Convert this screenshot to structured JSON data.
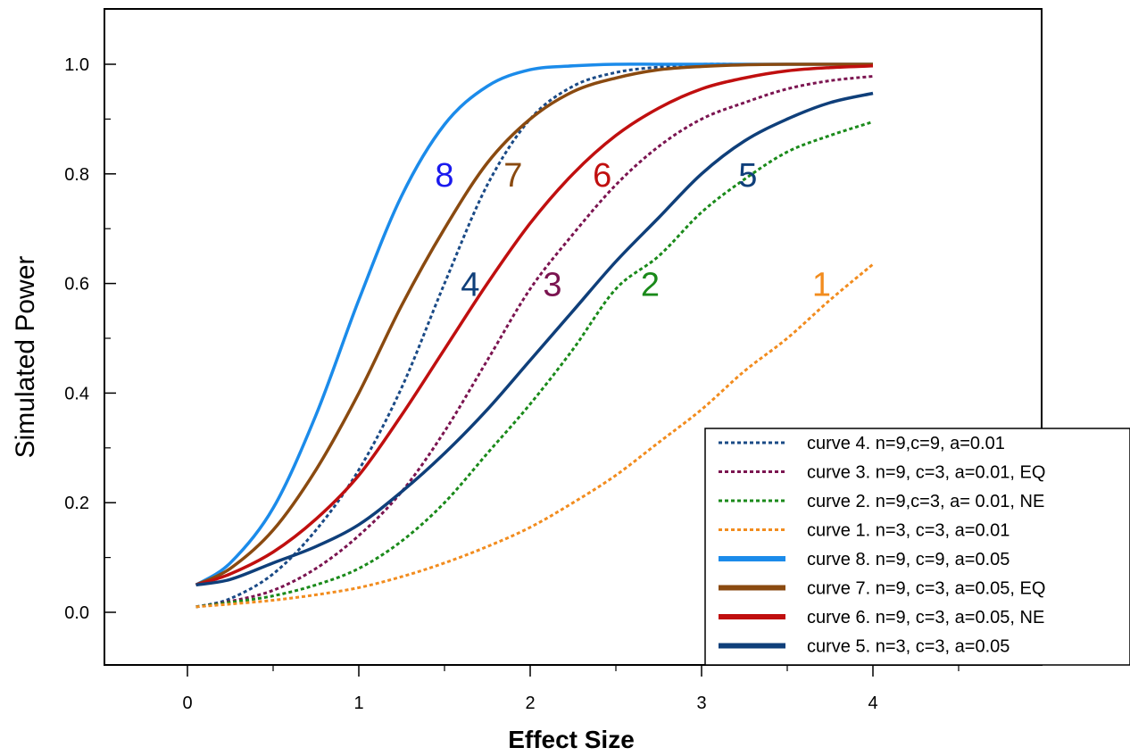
{
  "chart_data": {
    "type": "line",
    "xlabel": "Effect Size",
    "ylabel": "Simulated Power",
    "xlim": [
      -0.5,
      5.0
    ],
    "ylim": [
      -0.1,
      1.1
    ],
    "x_ticks": [
      "0",
      "1",
      "2",
      "3",
      "4"
    ],
    "y_ticks": [
      "0.0",
      "0.2",
      "0.4",
      "0.6",
      "0.8",
      "1.0"
    ],
    "grid": false,
    "legend_position": "bottom-right",
    "series": [
      {
        "name": "curve 4. n=9,c=9, a=0.01",
        "label": "4",
        "color": "#1a4a86",
        "style": "dotted",
        "x": [
          0.05,
          0.25,
          0.5,
          0.75,
          1.0,
          1.25,
          1.5,
          1.75,
          2.0,
          2.25,
          2.5,
          2.75,
          3.0,
          3.25,
          3.5,
          3.75,
          4.0
        ],
        "y": [
          0.01,
          0.025,
          0.07,
          0.15,
          0.26,
          0.41,
          0.6,
          0.78,
          0.9,
          0.96,
          0.985,
          0.995,
          1.0,
          1.0,
          1.0,
          1.0,
          1.0
        ]
      },
      {
        "name": "curve 3. n=9, c=3, a=0.01, EQ",
        "label": "3",
        "color": "#7b1450",
        "style": "dotted",
        "x": [
          0.05,
          0.25,
          0.5,
          0.75,
          1.0,
          1.25,
          1.5,
          1.75,
          2.0,
          2.25,
          2.5,
          2.75,
          3.0,
          3.25,
          3.5,
          3.75,
          4.0
        ],
        "y": [
          0.01,
          0.02,
          0.04,
          0.08,
          0.14,
          0.22,
          0.33,
          0.46,
          0.59,
          0.69,
          0.78,
          0.85,
          0.9,
          0.93,
          0.955,
          0.97,
          0.978
        ]
      },
      {
        "name": "curve 2. n=9,c=3, a= 0.01, NE",
        "label": "2",
        "color": "#1a8a1a",
        "style": "dotted",
        "x": [
          0.05,
          0.25,
          0.5,
          0.75,
          1.0,
          1.25,
          1.5,
          1.75,
          2.0,
          2.25,
          2.5,
          2.75,
          3.0,
          3.25,
          3.5,
          3.75,
          4.0
        ],
        "y": [
          0.01,
          0.018,
          0.03,
          0.05,
          0.08,
          0.13,
          0.2,
          0.29,
          0.38,
          0.48,
          0.59,
          0.65,
          0.73,
          0.79,
          0.84,
          0.87,
          0.895
        ]
      },
      {
        "name": "curve 1. n=3, c=3, a=0.01",
        "label": "1",
        "color": "#f28c1e",
        "style": "dotted",
        "x": [
          0.05,
          0.25,
          0.5,
          0.75,
          1.0,
          1.25,
          1.5,
          1.75,
          2.0,
          2.25,
          2.5,
          2.75,
          3.0,
          3.25,
          3.5,
          3.75,
          4.0
        ],
        "y": [
          0.01,
          0.015,
          0.022,
          0.032,
          0.045,
          0.065,
          0.09,
          0.12,
          0.155,
          0.2,
          0.25,
          0.31,
          0.37,
          0.44,
          0.5,
          0.57,
          0.635
        ]
      },
      {
        "name": "curve 8. n=9, c=9, a=0.05",
        "label": "8",
        "color": "#1b8bea",
        "style": "solid",
        "x": [
          0.05,
          0.25,
          0.5,
          0.75,
          1.0,
          1.25,
          1.5,
          1.75,
          2.0,
          2.25,
          2.5,
          2.75,
          3.0,
          3.25,
          3.5,
          3.75,
          4.0
        ],
        "y": [
          0.05,
          0.09,
          0.19,
          0.36,
          0.57,
          0.76,
          0.89,
          0.96,
          0.99,
          0.997,
          1.0,
          1.0,
          1.0,
          1.0,
          1.0,
          1.0,
          1.0
        ]
      },
      {
        "name": "curve 7. n=9, c=3, a=0.05, EQ",
        "label": "7",
        "color": "#8a4a10",
        "style": "solid",
        "x": [
          0.05,
          0.25,
          0.5,
          0.75,
          1.0,
          1.25,
          1.5,
          1.75,
          2.0,
          2.25,
          2.5,
          2.75,
          3.0,
          3.25,
          3.5,
          3.75,
          4.0
        ],
        "y": [
          0.05,
          0.08,
          0.15,
          0.26,
          0.4,
          0.56,
          0.7,
          0.82,
          0.9,
          0.95,
          0.975,
          0.99,
          0.996,
          0.999,
          1.0,
          1.0,
          1.0
        ]
      },
      {
        "name": "curve 6. n=9, c=3, a=0.05, NE",
        "label": "6",
        "color": "#c00f0f",
        "style": "solid",
        "x": [
          0.05,
          0.25,
          0.5,
          0.75,
          1.0,
          1.25,
          1.5,
          1.75,
          2.0,
          2.25,
          2.5,
          2.75,
          3.0,
          3.25,
          3.5,
          3.75,
          4.0
        ],
        "y": [
          0.05,
          0.07,
          0.11,
          0.17,
          0.25,
          0.36,
          0.48,
          0.6,
          0.71,
          0.8,
          0.87,
          0.92,
          0.955,
          0.975,
          0.988,
          0.994,
          0.997
        ]
      },
      {
        "name": "curve 5. n=3, c=3, a=0.05",
        "label": "5",
        "color": "#0f3f7a",
        "style": "solid",
        "x": [
          0.05,
          0.25,
          0.5,
          0.75,
          1.0,
          1.25,
          1.5,
          1.75,
          2.0,
          2.25,
          2.5,
          2.75,
          3.0,
          3.25,
          3.5,
          3.75,
          4.0
        ],
        "y": [
          0.05,
          0.06,
          0.09,
          0.12,
          0.16,
          0.22,
          0.29,
          0.37,
          0.46,
          0.55,
          0.64,
          0.72,
          0.8,
          0.86,
          0.9,
          0.93,
          0.947
        ]
      }
    ],
    "annotations": [
      {
        "text": "8",
        "x": 1.5,
        "y": 0.8,
        "color": "#1a1aee"
      },
      {
        "text": "7",
        "x": 1.9,
        "y": 0.8,
        "color": "#8a4a10"
      },
      {
        "text": "6",
        "x": 2.42,
        "y": 0.8,
        "color": "#c00f0f"
      },
      {
        "text": "5",
        "x": 3.27,
        "y": 0.8,
        "color": "#0f3f7a"
      },
      {
        "text": "4",
        "x": 1.65,
        "y": 0.6,
        "color": "#0f3f7a"
      },
      {
        "text": "3",
        "x": 2.13,
        "y": 0.6,
        "color": "#7b1450"
      },
      {
        "text": "2",
        "x": 2.7,
        "y": 0.6,
        "color": "#1a8a1a"
      },
      {
        "text": "1",
        "x": 3.7,
        "y": 0.6,
        "color": "#f28c1e"
      }
    ]
  }
}
